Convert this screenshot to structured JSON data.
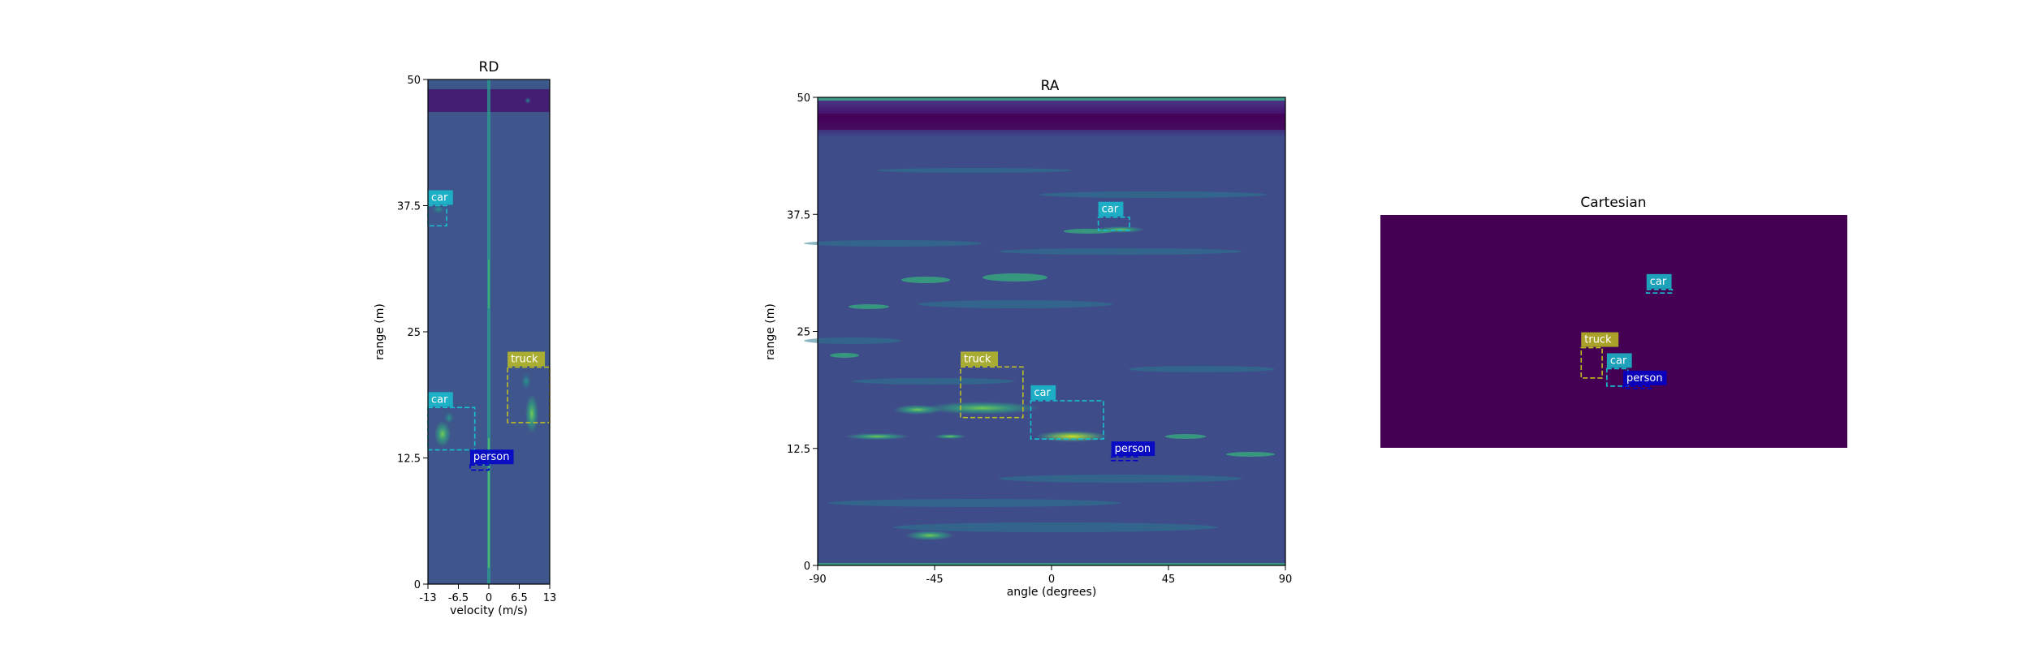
{
  "chart_data": [
    {
      "type": "heatmap",
      "title": "RD",
      "xlabel": "velocity (m/s)",
      "ylabel": "range (m)",
      "xlim": [
        -13,
        13
      ],
      "ylim": [
        0,
        50
      ],
      "xticks": [
        {
          "v": -13,
          "label": "-13"
        },
        {
          "v": -6.5,
          "label": "-6.5"
        },
        {
          "v": 0,
          "label": "0"
        },
        {
          "v": 6.5,
          "label": "6.5"
        },
        {
          "v": 13,
          "label": "13"
        }
      ],
      "yticks": [
        {
          "v": 0,
          "label": "0"
        },
        {
          "v": 12.5,
          "label": "12.5"
        },
        {
          "v": 25,
          "label": "25"
        },
        {
          "v": 37.5,
          "label": "37.5"
        },
        {
          "v": 50,
          "label": "50"
        }
      ],
      "boxes": [
        {
          "label": "car",
          "x0": -13,
          "x1": -9,
          "y0": 35.5,
          "y1": 37.5,
          "color": "#17becf"
        },
        {
          "label": "truck",
          "x0": 4,
          "x1": 13,
          "y0": 16,
          "y1": 21.5,
          "color": "#bcbd22"
        },
        {
          "label": "car",
          "x0": -13,
          "x1": -3,
          "y0": 13.3,
          "y1": 17.5,
          "color": "#17becf"
        },
        {
          "label": "person",
          "x0": -4,
          "x1": 0,
          "y0": 11.3,
          "y1": 11.8,
          "color": "#0000cd"
        }
      ]
    },
    {
      "type": "heatmap",
      "title": "RA",
      "xlabel": "angle (degrees)",
      "ylabel": "range (m)",
      "xlim": [
        -90,
        90
      ],
      "ylim": [
        0,
        50
      ],
      "xticks": [
        {
          "v": -90,
          "label": "-90"
        },
        {
          "v": -45,
          "label": "-45"
        },
        {
          "v": 0,
          "label": "0"
        },
        {
          "v": 45,
          "label": "45"
        },
        {
          "v": 90,
          "label": "90"
        }
      ],
      "yticks": [
        {
          "v": 0,
          "label": "0"
        },
        {
          "v": 12.5,
          "label": "12.5"
        },
        {
          "v": 25,
          "label": "25"
        },
        {
          "v": 37.5,
          "label": "37.5"
        },
        {
          "v": 50,
          "label": "50"
        }
      ],
      "boxes": [
        {
          "label": "car",
          "x0": 18,
          "x1": 30,
          "y0": 35.8,
          "y1": 37.2,
          "color": "#17becf"
        },
        {
          "label": "truck",
          "x0": -35,
          "x1": -11,
          "y0": 15.8,
          "y1": 21.2,
          "color": "#bcbd22"
        },
        {
          "label": "car",
          "x0": -8,
          "x1": 20,
          "y0": 13.5,
          "y1": 17.6,
          "color": "#17becf"
        },
        {
          "label": "person",
          "x0": 23,
          "x1": 33,
          "y0": 11.2,
          "y1": 11.6,
          "color": "#0000cd"
        }
      ]
    },
    {
      "type": "heatmap",
      "title": "Cartesian",
      "background": "#440154",
      "boxes": [
        {
          "label": "car",
          "x0": 0.57,
          "x1": 0.625,
          "y0": 0.32,
          "y1": 0.335,
          "color": "#17becf"
        },
        {
          "label": "truck",
          "x0": 0.43,
          "x1": 0.475,
          "y0": 0.57,
          "y1": 0.7,
          "color": "#bcbd22"
        },
        {
          "label": "car",
          "x0": 0.485,
          "x1": 0.53,
          "y0": 0.66,
          "y1": 0.735,
          "color": "#17becf"
        },
        {
          "label": "person",
          "x0": 0.52,
          "x1": 0.58,
          "y0": 0.735,
          "y1": 0.745,
          "color": "#0000cd"
        }
      ]
    }
  ]
}
